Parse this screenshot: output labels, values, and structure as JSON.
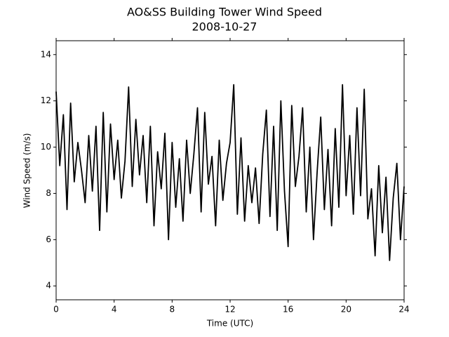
{
  "chart_data": {
    "type": "line",
    "title": "AO&SS Building Tower Wind Speed",
    "subtitle": "2008-10-27",
    "x_label": "Time (UTC)",
    "y_label": "Wind Speed (m/s)",
    "xlim": [
      0,
      24
    ],
    "xticks": [
      0,
      4,
      8,
      12,
      16,
      20,
      24
    ],
    "ylim": [
      3.4,
      14.6
    ],
    "yticks": [
      4,
      6,
      8,
      10,
      12,
      14
    ],
    "grid": false,
    "series": [
      {
        "color": "#000000",
        "x": [
          0,
          0.25,
          0.5,
          0.75,
          1,
          1.25,
          1.5,
          1.75,
          2,
          2.25,
          2.5,
          2.75,
          3,
          3.25,
          3.5,
          3.75,
          4,
          4.25,
          4.5,
          4.75,
          5,
          5.25,
          5.5,
          5.75,
          6,
          6.25,
          6.5,
          6.75,
          7,
          7.25,
          7.5,
          7.75,
          8,
          8.25,
          8.5,
          8.75,
          9,
          9.25,
          9.5,
          9.75,
          10,
          10.25,
          10.5,
          10.75,
          11,
          11.25,
          11.5,
          11.75,
          12,
          12.25,
          12.5,
          12.75,
          13,
          13.25,
          13.5,
          13.75,
          14,
          14.25,
          14.5,
          14.75,
          15,
          15.25,
          15.5,
          15.75,
          16,
          16.25,
          16.5,
          16.75,
          17,
          17.25,
          17.5,
          17.75,
          18,
          18.25,
          18.5,
          18.75,
          19,
          19.25,
          19.5,
          19.75,
          20,
          20.25,
          20.5,
          20.75,
          21,
          21.25,
          21.5,
          21.75,
          22,
          22.25,
          22.5,
          22.75,
          23,
          23.25,
          23.5,
          23.75,
          24
        ],
        "values": [
          12.4,
          9.2,
          11.4,
          7.3,
          11.9,
          8.5,
          10.2,
          9.0,
          7.6,
          10.5,
          8.1,
          10.9,
          6.4,
          11.5,
          7.2,
          11.0,
          8.6,
          10.3,
          7.8,
          9.4,
          12.6,
          8.3,
          11.2,
          8.8,
          10.5,
          7.6,
          10.9,
          6.6,
          9.8,
          8.2,
          10.6,
          6.0,
          10.2,
          7.4,
          9.5,
          6.8,
          10.3,
          8.0,
          9.7,
          11.7,
          7.2,
          11.5,
          8.4,
          9.6,
          6.6,
          10.3,
          7.7,
          9.3,
          10.2,
          12.7,
          7.1,
          10.4,
          6.8,
          9.2,
          7.6,
          9.1,
          6.7,
          9.7,
          11.6,
          7.0,
          10.9,
          6.4,
          12.0,
          8.1,
          5.7,
          11.8,
          8.3,
          9.6,
          11.7,
          7.2,
          10.0,
          6.0,
          8.9,
          11.3,
          7.3,
          9.9,
          6.6,
          10.8,
          7.4,
          12.7,
          7.9,
          10.5,
          7.1,
          11.7,
          7.9,
          12.5,
          6.9,
          8.2,
          5.3,
          9.2,
          6.3,
          8.7,
          5.1,
          7.8,
          9.3,
          6.0,
          8.3
        ]
      }
    ]
  }
}
